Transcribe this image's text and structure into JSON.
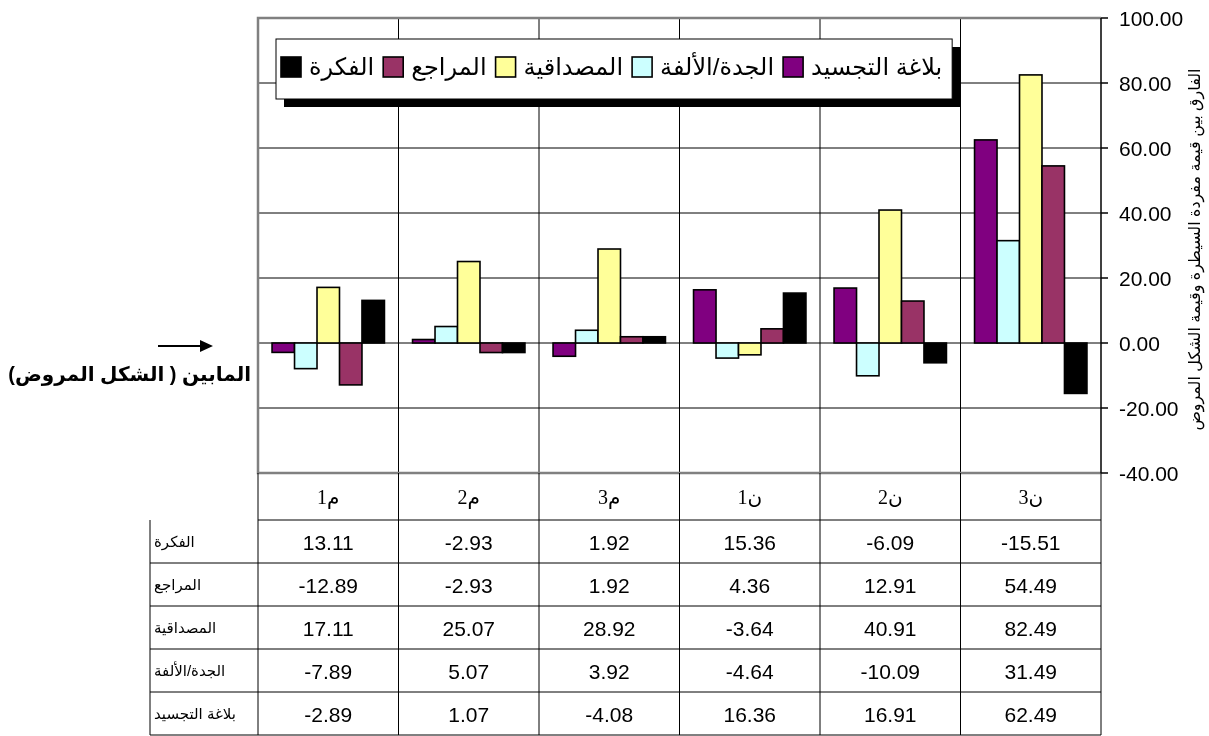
{
  "chart_data": {
    "type": "bar",
    "categories": [
      "م1",
      "م2",
      "م3",
      "ن1",
      "ن2",
      "ن3"
    ],
    "series": [
      {
        "name": "بلاغة التجسيد",
        "color": "#800080",
        "values": [
          -2.89,
          1.07,
          -4.08,
          16.36,
          16.91,
          62.49
        ]
      },
      {
        "name": "الجدة/الألفة",
        "color": "#ccffff",
        "values": [
          -7.89,
          5.07,
          3.92,
          -4.64,
          -10.09,
          31.49
        ]
      },
      {
        "name": "المصداقية",
        "color": "#ffff99",
        "values": [
          17.11,
          25.07,
          28.92,
          -3.64,
          40.91,
          82.49
        ]
      },
      {
        "name": "المراجع",
        "color": "#993366",
        "values": [
          -12.89,
          -2.93,
          1.92,
          4.36,
          12.91,
          54.49
        ]
      },
      {
        "name": "الفكرة",
        "color": "#000000",
        "values": [
          13.11,
          -2.93,
          1.92,
          15.36,
          -6.09,
          -15.51
        ]
      }
    ],
    "ylim": [
      -40,
      100
    ],
    "yticks": [
      {
        "value": -40,
        "label": "-40.00"
      },
      {
        "value": -20,
        "label": "-20.00"
      },
      {
        "value": 0,
        "label": "0.00"
      },
      {
        "value": 20,
        "label": "20.00"
      },
      {
        "value": 40,
        "label": "40.00"
      },
      {
        "value": 60,
        "label": "60.00"
      },
      {
        "value": 80,
        "label": "80.00"
      },
      {
        "value": 100,
        "label": "100.00"
      }
    ],
    "ylabel": "الفارق بين قيمة مفردة السيطرة وقيمة الشكل المروض",
    "annotations": [
      "المابين ( الشكل المروض)"
    ],
    "grid": true,
    "legend": "top",
    "data_labels": true
  }
}
